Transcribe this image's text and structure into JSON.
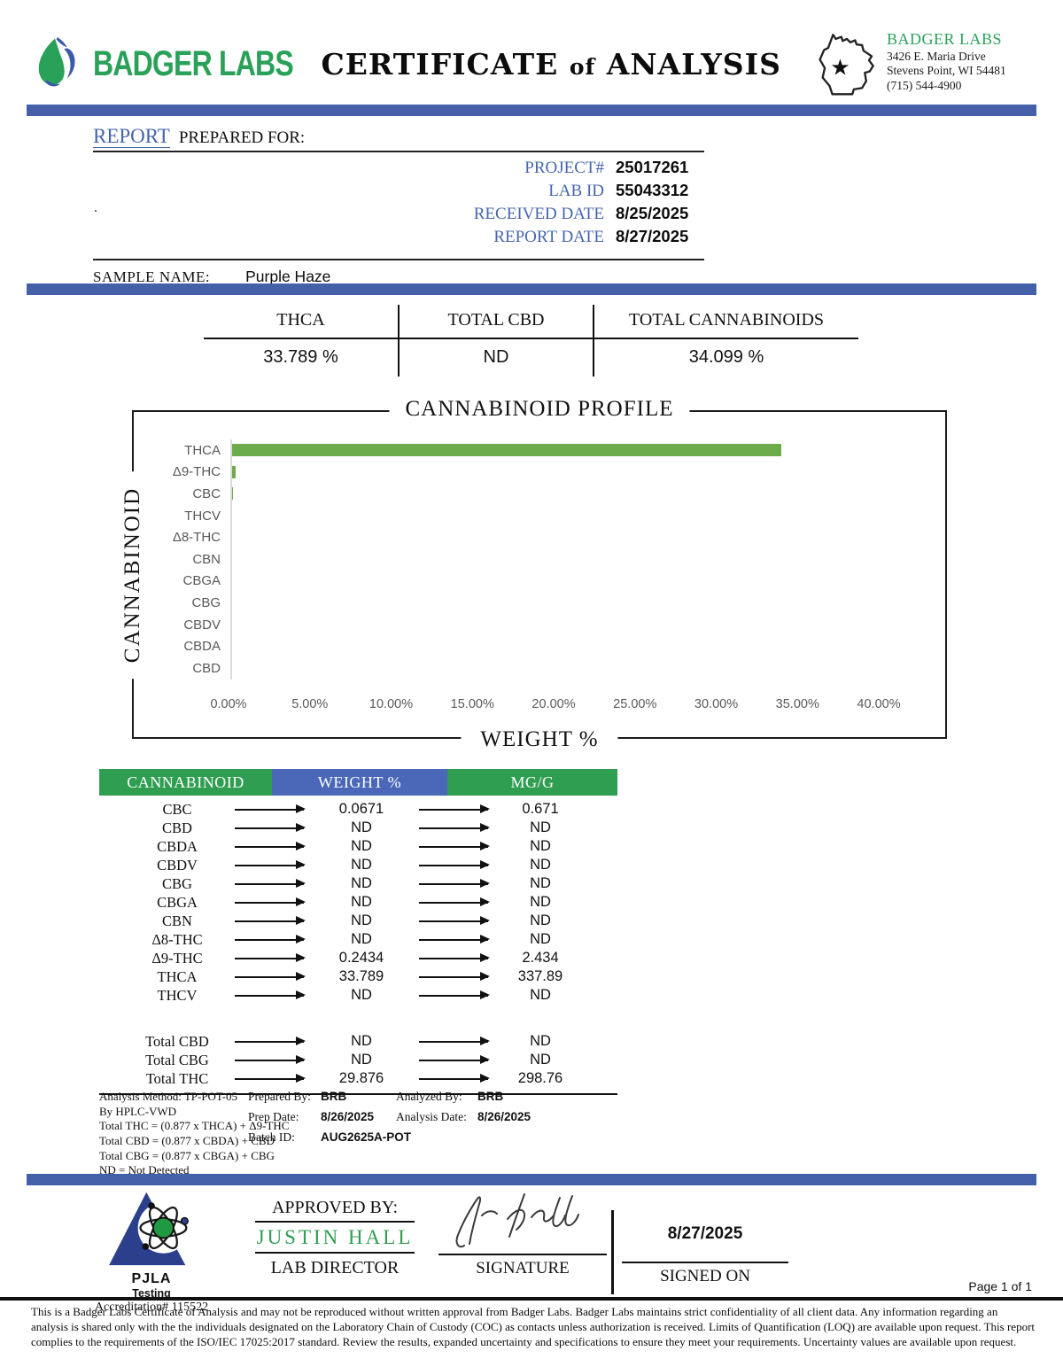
{
  "colors": {
    "accent_blue_bar": "#4460a8",
    "label_blue": "#4565ae",
    "brand_green": "#2aa158",
    "table_header_green": "#2f9e51",
    "table_header_blue": "#4a67b8",
    "bar_green": "#6dac4b"
  },
  "header": {
    "logo_text": "BADGER LABS",
    "title_main1": "CERTIFICATE",
    "title_of": "of",
    "title_main2": "ANALYSIS",
    "lab_info": {
      "name": "BADGER LABS",
      "address_line1": "3426 E. Maria Drive",
      "address_line2": "Stevens Point, WI 54481",
      "phone": "(715) 544-4900"
    }
  },
  "report": {
    "heading_report": "REPORT",
    "heading_prepared": "PREPARED FOR:",
    "dot": ".",
    "fields": [
      {
        "label": "PROJECT#",
        "value": "25017261"
      },
      {
        "label": "LAB ID",
        "value": "55043312"
      },
      {
        "label": "RECEIVED DATE",
        "value": "8/25/2025"
      },
      {
        "label": "REPORT DATE",
        "value": "8/27/2025"
      }
    ],
    "sample_name_label": "SAMPLE NAME:",
    "sample_name": "Purple Haze"
  },
  "summary": {
    "columns": [
      {
        "label": "THCA",
        "value": "33.789 %"
      },
      {
        "label": "TOTAL CBD",
        "value": "ND"
      },
      {
        "label": "TOTAL CANNABINOIDS",
        "value": "34.099 %"
      }
    ]
  },
  "chart_data": {
    "type": "bar",
    "orientation": "horizontal",
    "title": "CANNABINOID PROFILE",
    "xlabel": "WEIGHT %",
    "ylabel": "CANNABINOID",
    "categories": [
      "THCA",
      "Δ9-THC",
      "CBC",
      "THCV",
      "Δ8-THC",
      "CBN",
      "CBGA",
      "CBG",
      "CBDV",
      "CBDA",
      "CBD"
    ],
    "values": [
      33.789,
      0.2434,
      0.0671,
      0,
      0,
      0,
      0,
      0,
      0,
      0,
      0
    ],
    "xlim": [
      0,
      40
    ],
    "x_ticks": [
      "0.00%",
      "5.00%",
      "10.00%",
      "15.00%",
      "20.00%",
      "25.00%",
      "30.00%",
      "35.00%",
      "40.00%"
    ],
    "grid": false,
    "legend": false,
    "bar_color": "#6dac4b"
  },
  "table": {
    "headers": [
      {
        "label": "CANNABINOID",
        "color": "#2f9e51"
      },
      {
        "label": "WEIGHT %",
        "color": "#4a67b8"
      },
      {
        "label": "MG/G",
        "color": "#2f9e51"
      }
    ],
    "rows": [
      {
        "name": "CBC",
        "weight": "0.0671",
        "mgg": "0.671"
      },
      {
        "name": "CBD",
        "weight": "ND",
        "mgg": "ND"
      },
      {
        "name": "CBDA",
        "weight": "ND",
        "mgg": "ND"
      },
      {
        "name": "CBDV",
        "weight": "ND",
        "mgg": "ND"
      },
      {
        "name": "CBG",
        "weight": "ND",
        "mgg": "ND"
      },
      {
        "name": "CBGA",
        "weight": "ND",
        "mgg": "ND"
      },
      {
        "name": "CBN",
        "weight": "ND",
        "mgg": "ND"
      },
      {
        "name": "Δ8-THC",
        "weight": "ND",
        "mgg": "ND"
      },
      {
        "name": "Δ9-THC",
        "weight": "0.2434",
        "mgg": "2.434"
      },
      {
        "name": "THCA",
        "weight": "33.789",
        "mgg": "337.89"
      },
      {
        "name": "THCV",
        "weight": "ND",
        "mgg": "ND"
      }
    ],
    "totals": [
      {
        "name": "Total CBD",
        "weight": "ND",
        "mgg": "ND"
      },
      {
        "name": "Total CBG",
        "weight": "ND",
        "mgg": "ND"
      },
      {
        "name": "Total THC",
        "weight": "29.876",
        "mgg": "298.76"
      }
    ]
  },
  "notes": {
    "method_lines": [
      "Analysis Method: TP-POT-05",
      "By HPLC-VWD",
      "Total THC = (0.877 x  THCA) + Δ9-THC",
      "Total CBD = (0.877 x  CBDA) + CBD",
      "Total CBG = (0.877 x  CBGA) + CBG",
      "ND = Not Detected"
    ],
    "prepared_by_label": "Prepared By:",
    "prepared_by": "BRB",
    "prep_date_label": "Prep Date:",
    "prep_date": "8/26/2025",
    "batch_id_label": "Batch ID:",
    "batch_id": "AUG2625A-POT",
    "analyzed_by_label": "Analyzed By:",
    "analyzed_by": "BRB",
    "analysis_date_label": "Analysis Date:",
    "analysis_date": "8/26/2025"
  },
  "footer": {
    "pjla_name": "PJLA",
    "pjla_subtitle": "Testing",
    "pjla_accreditation": "Accreditation# 115522",
    "approved_by_label": "APPROVED BY:",
    "approver_name": "JUSTIN HALL",
    "approver_title": "LAB DIRECTOR",
    "signature_label": "SIGNATURE",
    "signed_on_date": "8/27/2025",
    "signed_on_label": "SIGNED ON",
    "page_label": "Page 1 of 1"
  },
  "disclaimer": "This is a Badger Labs Certificate of Analysis and may not be reproduced without written approval from Badger Labs. Badger Labs maintains strict confidentiality of all client data. Any information regarding an analysis is shared only with the the individuals designated on the Laboratory Chain of Custody (COC) as contacts unless authorization is received. Limits of Quantification (LOQ) are available upon request. This report complies to the requirements of the ISO/IEC 17025:2017 standard. Review the results, expanded uncertainty and specifications to ensure they meet your requirements. Uncertainty values are available upon request."
}
